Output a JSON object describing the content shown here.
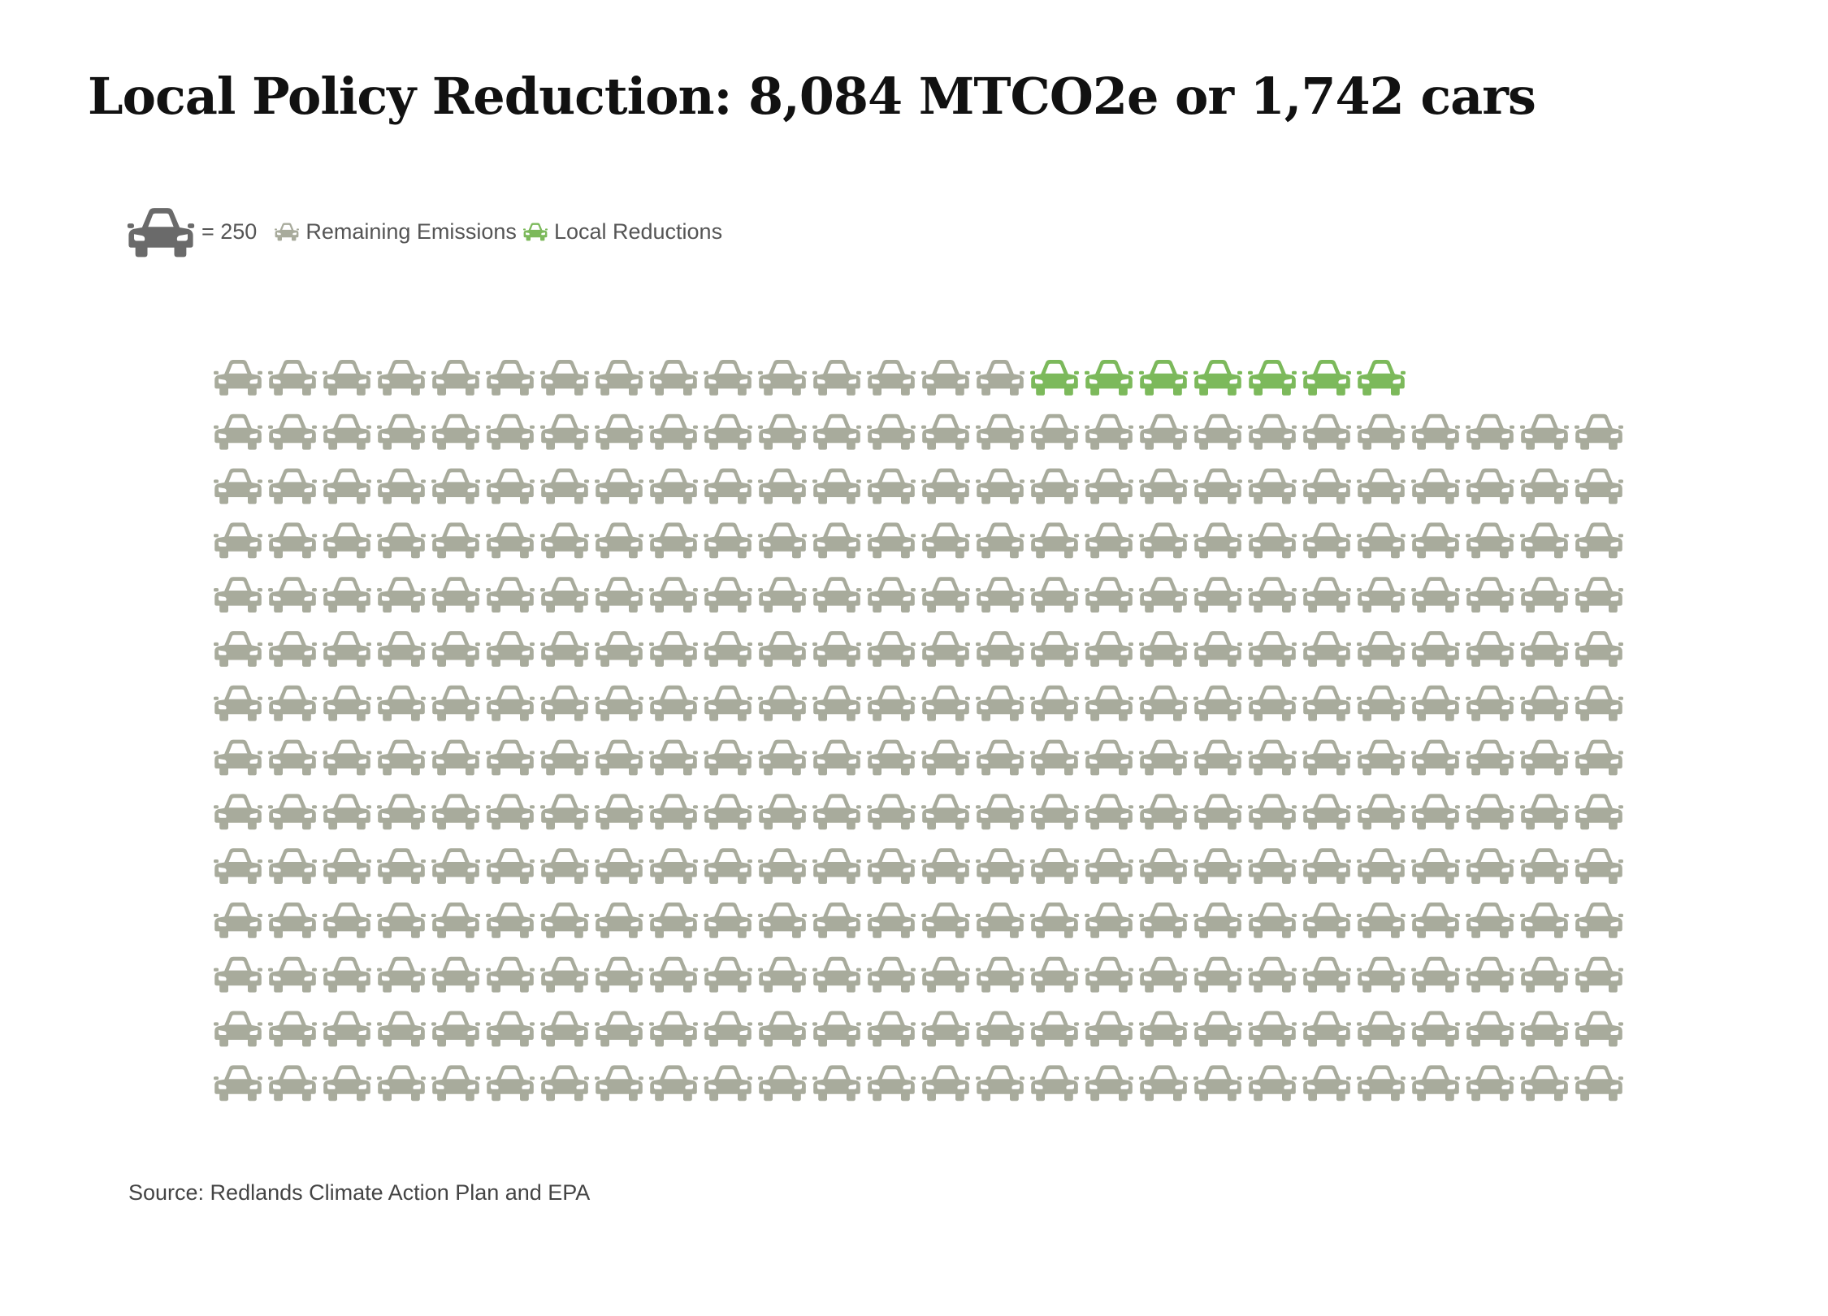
{
  "title": "Local Policy Reduction: 8,084 MTCO2e or 1,742 cars",
  "legend": {
    "unit_value": "= 250",
    "remaining_label": "Remaining Emissions",
    "reductions_label": "Local Reductions"
  },
  "colors": {
    "remaining": "#a8ab9c",
    "reductions": "#7cb95b",
    "unit_icon": "#6a6a6a",
    "title": "#111111"
  },
  "icon": "car-icon",
  "chart_data": {
    "type": "pictograph",
    "unit_per_icon": 250,
    "columns": 26,
    "rows": 14,
    "series": [
      {
        "name": "Remaining Emissions",
        "icon_count": 15,
        "position": "first row, before reductions",
        "color": "#a8ab9c"
      },
      {
        "name": "Local Reductions",
        "icon_count": 7,
        "color": "#7cb95b"
      },
      {
        "name": "Remaining Emissions",
        "icon_count": 338,
        "position": "rows 2-14",
        "color": "#a8ab9c"
      }
    ],
    "first_row": [
      "remaining",
      "remaining",
      "remaining",
      "remaining",
      "remaining",
      "remaining",
      "remaining",
      "remaining",
      "remaining",
      "remaining",
      "remaining",
      "remaining",
      "remaining",
      "remaining",
      "remaining",
      "reduction",
      "reduction",
      "reduction",
      "reduction",
      "reduction",
      "reduction",
      "reduction"
    ],
    "full_rows": 13,
    "reduction_mtco2e": "8,084",
    "reduction_cars": "1,742"
  },
  "source": "Source: Redlands Climate Action Plan and EPA"
}
